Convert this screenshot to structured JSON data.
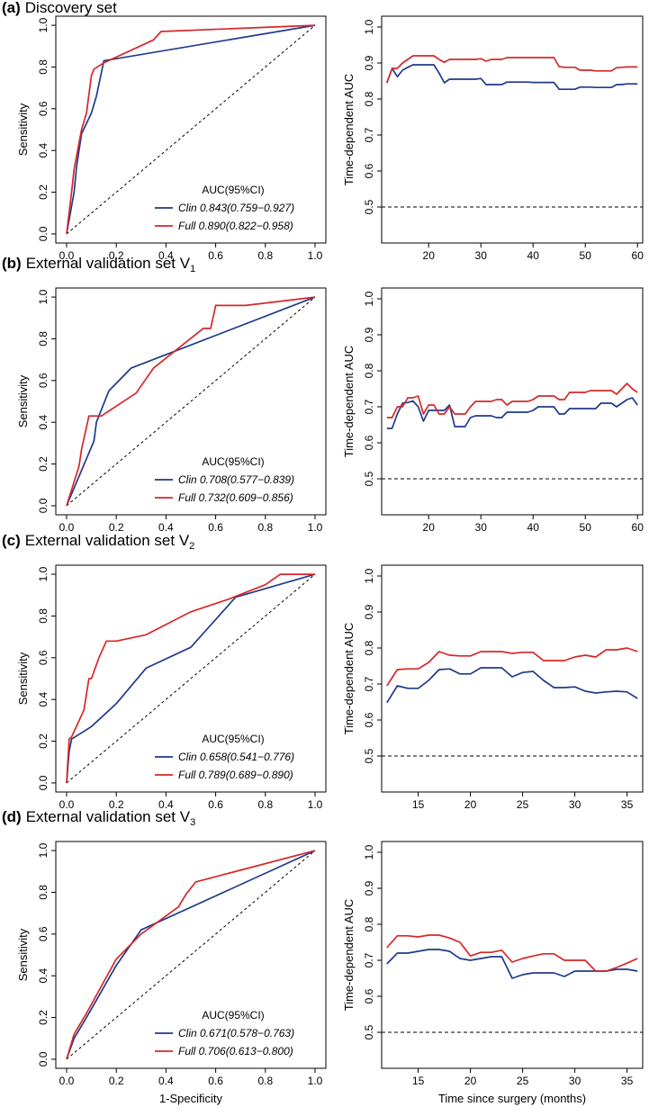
{
  "colors": {
    "clin": "#1f3a8a",
    "full": "#d62728",
    "axis": "#000000"
  },
  "panels": [
    {
      "letter": "(a)",
      "title": "Discovery set",
      "sub": ""
    },
    {
      "letter": "(b)",
      "title": "External validation set V",
      "sub": "1"
    },
    {
      "letter": "(c)",
      "title": "External validation set V",
      "sub": "2"
    },
    {
      "letter": "(d)",
      "title": "External validation set V",
      "sub": "3"
    }
  ],
  "chart_data": [
    {
      "type": "line",
      "kind": "roc",
      "panel": "(a)",
      "xlabel": "",
      "ylabel": "Sensitivity",
      "xlim": [
        0,
        1
      ],
      "ylim": [
        0,
        1
      ],
      "xticks": [
        "0.0",
        "0.2",
        "0.4",
        "0.6",
        "0.8",
        "1.0"
      ],
      "yticks": [
        "0.0",
        "0.2",
        "0.4",
        "0.6",
        "0.8",
        "1.0"
      ],
      "legend_title": "AUC(95%CI)",
      "series": [
        {
          "name": "Clin",
          "legend": "Clin  0.843(0.759−0.927)",
          "color": "#1f3a8a",
          "x": [
            0,
            0.03,
            0.04,
            0.06,
            0.1,
            0.12,
            0.15,
            1.0
          ],
          "y": [
            0,
            0.2,
            0.32,
            0.48,
            0.58,
            0.66,
            0.83,
            1.0
          ]
        },
        {
          "name": "Full",
          "legend": "Full  0.890(0.822−0.958)",
          "color": "#d62728",
          "x": [
            0,
            0.02,
            0.03,
            0.06,
            0.08,
            0.1,
            0.11,
            0.15,
            0.35,
            0.38,
            1.0
          ],
          "y": [
            0,
            0.2,
            0.31,
            0.5,
            0.58,
            0.76,
            0.79,
            0.82,
            0.93,
            0.97,
            1.0
          ]
        }
      ]
    },
    {
      "type": "line",
      "kind": "td",
      "panel": "(a)",
      "xlabel": "",
      "ylabel": "Time-dependent AUC",
      "xlim": [
        11,
        61
      ],
      "ylim": [
        0.4,
        1.03
      ],
      "xticks": [
        20,
        30,
        40,
        50,
        60
      ],
      "yticks": [
        "0.5",
        "0.6",
        "0.7",
        "0.8",
        "0.9",
        "1.0"
      ],
      "ref": 0.5,
      "series": [
        {
          "name": "Clin",
          "color": "#1f3a8a",
          "x": [
            12,
            13,
            14,
            15,
            16,
            17,
            18,
            19,
            20,
            21,
            22,
            23,
            24,
            25,
            26,
            27,
            28,
            29,
            30,
            31,
            32,
            33,
            34,
            35,
            36,
            37,
            38,
            39,
            40,
            41,
            42,
            43,
            44,
            45,
            46,
            47,
            48,
            49,
            50,
            51,
            52,
            53,
            54,
            55,
            56,
            57,
            58,
            59,
            60
          ],
          "y": [
            0.845,
            0.885,
            0.862,
            0.88,
            0.888,
            0.895,
            0.895,
            0.895,
            0.895,
            0.895,
            0.872,
            0.845,
            0.855,
            0.855,
            0.855,
            0.855,
            0.855,
            0.855,
            0.857,
            0.84,
            0.84,
            0.84,
            0.84,
            0.847,
            0.847,
            0.847,
            0.847,
            0.847,
            0.846,
            0.846,
            0.846,
            0.846,
            0.846,
            0.827,
            0.827,
            0.827,
            0.827,
            0.833,
            0.833,
            0.833,
            0.832,
            0.832,
            0.832,
            0.832,
            0.84,
            0.84,
            0.842,
            0.842,
            0.842
          ]
        },
        {
          "name": "Full",
          "color": "#d62728",
          "x": [
            12,
            13,
            14,
            15,
            16,
            17,
            18,
            19,
            20,
            21,
            22,
            23,
            24,
            25,
            26,
            27,
            28,
            29,
            30,
            31,
            32,
            33,
            34,
            35,
            36,
            37,
            38,
            39,
            40,
            41,
            42,
            43,
            44,
            45,
            46,
            47,
            48,
            49,
            50,
            51,
            52,
            53,
            54,
            55,
            56,
            57,
            58,
            59,
            60
          ],
          "y": [
            0.845,
            0.885,
            0.885,
            0.9,
            0.91,
            0.92,
            0.92,
            0.92,
            0.92,
            0.92,
            0.91,
            0.902,
            0.91,
            0.91,
            0.91,
            0.91,
            0.91,
            0.91,
            0.912,
            0.905,
            0.91,
            0.91,
            0.91,
            0.915,
            0.915,
            0.915,
            0.915,
            0.915,
            0.915,
            0.915,
            0.915,
            0.915,
            0.915,
            0.89,
            0.888,
            0.888,
            0.888,
            0.88,
            0.88,
            0.88,
            0.878,
            0.878,
            0.878,
            0.878,
            0.887,
            0.888,
            0.889,
            0.889,
            0.889
          ]
        }
      ]
    },
    {
      "type": "line",
      "kind": "roc",
      "panel": "(b)",
      "xlabel": "",
      "ylabel": "Sensitivity",
      "xlim": [
        0,
        1
      ],
      "ylim": [
        0,
        1
      ],
      "xticks": [
        "0.0",
        "0.2",
        "0.4",
        "0.6",
        "0.8",
        "1.0"
      ],
      "yticks": [
        "0.0",
        "0.2",
        "0.4",
        "0.6",
        "0.8",
        "1.0"
      ],
      "legend_title": "AUC(95%CI)",
      "series": [
        {
          "name": "Clin",
          "legend": "Clin  0.708(0.577−0.839)",
          "color": "#1f3a8a",
          "x": [
            0,
            0.11,
            0.12,
            0.17,
            0.26,
            1.0
          ],
          "y": [
            0,
            0.31,
            0.4,
            0.55,
            0.66,
            1.0
          ]
        },
        {
          "name": "Full",
          "legend": "Full  0.732(0.609−0.856)",
          "color": "#d62728",
          "x": [
            0,
            0.05,
            0.06,
            0.09,
            0.14,
            0.28,
            0.35,
            0.55,
            0.58,
            0.6,
            0.72,
            1.0
          ],
          "y": [
            0,
            0.19,
            0.27,
            0.43,
            0.43,
            0.54,
            0.66,
            0.85,
            0.85,
            0.96,
            0.96,
            1.0
          ]
        }
      ]
    },
    {
      "type": "line",
      "kind": "td",
      "panel": "(b)",
      "xlabel": "",
      "ylabel": "Time-dependent AUC",
      "xlim": [
        11,
        61
      ],
      "ylim": [
        0.4,
        1.03
      ],
      "xticks": [
        20,
        30,
        40,
        50,
        60
      ],
      "yticks": [
        "0.5",
        "0.6",
        "0.7",
        "0.8",
        "0.9",
        "1.0"
      ],
      "ref": 0.5,
      "series": [
        {
          "name": "Clin",
          "color": "#1f3a8a",
          "x": [
            12,
            13,
            14,
            15,
            16,
            17,
            18,
            19,
            20,
            21,
            22,
            23,
            24,
            25,
            26,
            27,
            28,
            29,
            30,
            31,
            32,
            33,
            34,
            35,
            36,
            37,
            38,
            39,
            40,
            41,
            42,
            43,
            44,
            45,
            46,
            47,
            48,
            49,
            50,
            51,
            52,
            53,
            54,
            55,
            56,
            57,
            58,
            59,
            60
          ],
          "y": [
            0.64,
            0.64,
            0.68,
            0.71,
            0.712,
            0.716,
            0.7,
            0.66,
            0.69,
            0.69,
            0.69,
            0.69,
            0.705,
            0.645,
            0.645,
            0.645,
            0.67,
            0.675,
            0.675,
            0.675,
            0.675,
            0.67,
            0.67,
            0.685,
            0.685,
            0.685,
            0.685,
            0.685,
            0.69,
            0.7,
            0.7,
            0.7,
            0.7,
            0.68,
            0.68,
            0.695,
            0.695,
            0.695,
            0.695,
            0.695,
            0.695,
            0.71,
            0.71,
            0.71,
            0.7,
            0.71,
            0.72,
            0.725,
            0.705
          ]
        },
        {
          "name": "Full",
          "color": "#d62728",
          "x": [
            12,
            13,
            14,
            15,
            16,
            17,
            18,
            19,
            20,
            21,
            22,
            23,
            24,
            25,
            26,
            27,
            28,
            29,
            30,
            31,
            32,
            33,
            34,
            35,
            36,
            37,
            38,
            39,
            40,
            41,
            42,
            43,
            44,
            45,
            46,
            47,
            48,
            49,
            50,
            51,
            52,
            53,
            54,
            55,
            56,
            57,
            58,
            59,
            60
          ],
          "y": [
            0.67,
            0.67,
            0.7,
            0.7,
            0.725,
            0.725,
            0.73,
            0.68,
            0.705,
            0.705,
            0.68,
            0.68,
            0.7,
            0.68,
            0.68,
            0.68,
            0.7,
            0.715,
            0.715,
            0.715,
            0.715,
            0.72,
            0.72,
            0.705,
            0.715,
            0.715,
            0.715,
            0.715,
            0.72,
            0.73,
            0.73,
            0.73,
            0.73,
            0.72,
            0.72,
            0.74,
            0.74,
            0.74,
            0.74,
            0.745,
            0.745,
            0.745,
            0.745,
            0.745,
            0.735,
            0.75,
            0.765,
            0.75,
            0.74
          ]
        }
      ]
    },
    {
      "type": "line",
      "kind": "roc",
      "panel": "(c)",
      "xlabel": "",
      "ylabel": "Sensitivity",
      "xlim": [
        0,
        1
      ],
      "ylim": [
        0,
        1
      ],
      "xticks": [
        "0.0",
        "0.2",
        "0.4",
        "0.6",
        "0.8",
        "1.0"
      ],
      "yticks": [
        "0.0",
        "0.2",
        "0.4",
        "0.6",
        "0.8",
        "1.0"
      ],
      "legend_title": "AUC(95%CI)",
      "series": [
        {
          "name": "Clin",
          "legend": "Clin  0.658(0.541−0.776)",
          "color": "#1f3a8a",
          "x": [
            0,
            0.01,
            0.02,
            0.1,
            0.2,
            0.32,
            0.5,
            0.68,
            1.0
          ],
          "y": [
            0,
            0.15,
            0.21,
            0.27,
            0.38,
            0.55,
            0.65,
            0.89,
            1.0
          ]
        },
        {
          "name": "Full",
          "legend": "Full  0.789(0.689−0.890)",
          "color": "#d62728",
          "x": [
            0,
            0.01,
            0.02,
            0.07,
            0.09,
            0.1,
            0.13,
            0.16,
            0.18,
            0.2,
            0.32,
            0.5,
            0.65,
            0.8,
            0.86,
            1.0
          ],
          "y": [
            0,
            0.21,
            0.22,
            0.35,
            0.5,
            0.5,
            0.6,
            0.68,
            0.68,
            0.68,
            0.71,
            0.82,
            0.88,
            0.95,
            1.0,
            1.0
          ]
        }
      ]
    },
    {
      "type": "line",
      "kind": "td",
      "panel": "(c)",
      "xlabel": "",
      "ylabel": "Time-dependent AUC",
      "xlim": [
        11.5,
        36.5
      ],
      "ylim": [
        0.4,
        1.03
      ],
      "xticks": [
        15,
        20,
        25,
        30,
        35
      ],
      "yticks": [
        "0.5",
        "0.6",
        "0.7",
        "0.8",
        "0.9",
        "1.0"
      ],
      "ref": 0.5,
      "series": [
        {
          "name": "Clin",
          "color": "#1f3a8a",
          "x": [
            12,
            13,
            14,
            15,
            16,
            17,
            18,
            19,
            20,
            21,
            22,
            23,
            24,
            25,
            26,
            27,
            28,
            29,
            30,
            31,
            32,
            33,
            34,
            35,
            36
          ],
          "y": [
            0.648,
            0.695,
            0.688,
            0.688,
            0.71,
            0.74,
            0.742,
            0.728,
            0.728,
            0.745,
            0.745,
            0.745,
            0.72,
            0.732,
            0.735,
            0.71,
            0.69,
            0.69,
            0.692,
            0.68,
            0.675,
            0.678,
            0.68,
            0.678,
            0.66
          ]
        },
        {
          "name": "Full",
          "color": "#d62728",
          "x": [
            12,
            13,
            14,
            15,
            16,
            17,
            18,
            19,
            20,
            21,
            22,
            23,
            24,
            25,
            26,
            27,
            28,
            29,
            30,
            31,
            32,
            33,
            34,
            35,
            36
          ],
          "y": [
            0.695,
            0.74,
            0.742,
            0.742,
            0.76,
            0.79,
            0.78,
            0.778,
            0.778,
            0.79,
            0.79,
            0.79,
            0.785,
            0.788,
            0.788,
            0.765,
            0.765,
            0.765,
            0.775,
            0.78,
            0.775,
            0.795,
            0.795,
            0.8,
            0.79
          ]
        }
      ]
    },
    {
      "type": "line",
      "kind": "roc",
      "panel": "(d)",
      "xlabel": "1-Specificity",
      "ylabel": "Sensitivity",
      "xlim": [
        0,
        1
      ],
      "ylim": [
        0,
        1
      ],
      "xticks": [
        "0.0",
        "0.2",
        "0.4",
        "0.6",
        "0.8",
        "1.0"
      ],
      "yticks": [
        "0.0",
        "0.2",
        "0.4",
        "0.6",
        "0.8",
        "1.0"
      ],
      "legend_title": "AUC(95%CI)",
      "series": [
        {
          "name": "Clin",
          "legend": "Clin  0.671(0.578−0.763)",
          "color": "#1f3a8a",
          "x": [
            0,
            0.03,
            0.08,
            0.2,
            0.3,
            1.0
          ],
          "y": [
            0,
            0.1,
            0.2,
            0.45,
            0.62,
            1.0
          ]
        },
        {
          "name": "Full",
          "legend": "Full  0.706(0.613−0.800)",
          "color": "#d62728",
          "x": [
            0,
            0.03,
            0.08,
            0.2,
            0.3,
            0.45,
            0.48,
            0.52,
            1.0
          ],
          "y": [
            0,
            0.12,
            0.22,
            0.48,
            0.6,
            0.73,
            0.79,
            0.85,
            1.0
          ]
        }
      ]
    },
    {
      "type": "line",
      "kind": "td",
      "panel": "(d)",
      "xlabel": "Time since surgery (months)",
      "ylabel": "Time-dependent AUC",
      "xlim": [
        11.5,
        36.5
      ],
      "ylim": [
        0.4,
        1.03
      ],
      "xticks": [
        15,
        20,
        25,
        30,
        35
      ],
      "yticks": [
        "0.5",
        "0.6",
        "0.7",
        "0.8",
        "0.9",
        "1.0"
      ],
      "ref": 0.5,
      "series": [
        {
          "name": "Clin",
          "color": "#1f3a8a",
          "x": [
            12,
            13,
            14,
            15,
            16,
            17,
            18,
            19,
            20,
            21,
            22,
            23,
            24,
            25,
            26,
            27,
            28,
            29,
            30,
            31,
            32,
            33,
            34,
            35,
            36
          ],
          "y": [
            0.69,
            0.72,
            0.72,
            0.725,
            0.73,
            0.73,
            0.725,
            0.705,
            0.7,
            0.705,
            0.71,
            0.71,
            0.65,
            0.66,
            0.665,
            0.665,
            0.665,
            0.655,
            0.67,
            0.67,
            0.67,
            0.67,
            0.675,
            0.675,
            0.67
          ]
        },
        {
          "name": "Full",
          "color": "#d62728",
          "x": [
            12,
            13,
            14,
            15,
            16,
            17,
            18,
            19,
            20,
            21,
            22,
            23,
            24,
            25,
            26,
            27,
            28,
            29,
            30,
            31,
            32,
            33,
            34,
            35,
            36
          ],
          "y": [
            0.735,
            0.768,
            0.768,
            0.765,
            0.77,
            0.77,
            0.762,
            0.75,
            0.712,
            0.722,
            0.722,
            0.728,
            0.695,
            0.705,
            0.712,
            0.718,
            0.718,
            0.7,
            0.7,
            0.7,
            0.67,
            0.67,
            0.68,
            0.692,
            0.705
          ]
        }
      ]
    }
  ]
}
